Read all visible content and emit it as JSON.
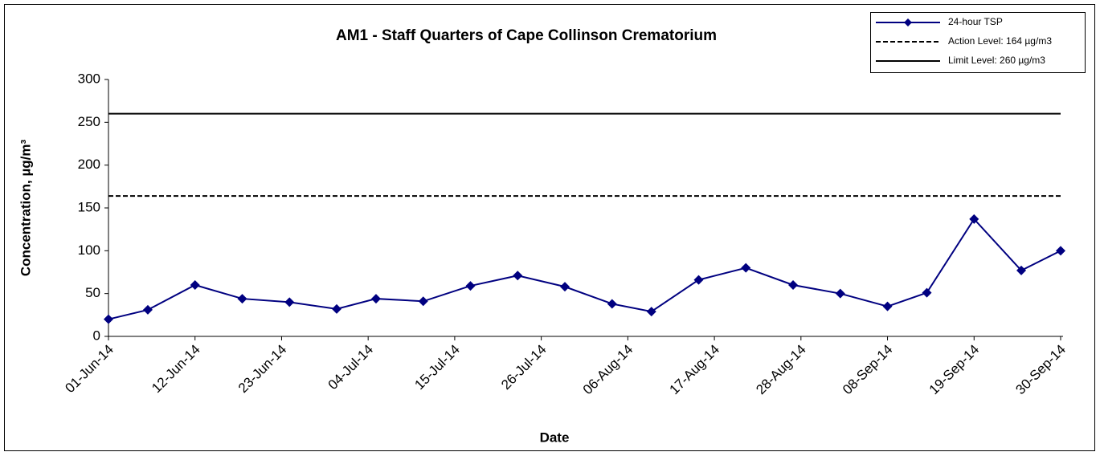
{
  "chart_data": {
    "type": "line",
    "title": "AM1 - Staff Quarters of Cape Collinson Crematorium",
    "x_label": "Date",
    "y_label": "Concentration, µg/m³",
    "x": [
      "2014-06-01",
      "2014-06-06",
      "2014-06-12",
      "2014-06-18",
      "2014-06-24",
      "2014-06-30",
      "2014-07-05",
      "2014-07-11",
      "2014-07-17",
      "2014-07-23",
      "2014-07-29",
      "2014-08-04",
      "2014-08-09",
      "2014-08-15",
      "2014-08-21",
      "2014-08-27",
      "2014-09-02",
      "2014-09-08",
      "2014-09-13",
      "2014-09-19",
      "2014-09-25",
      "2014-09-30"
    ],
    "series": [
      {
        "name": "24-hour TSP",
        "color": "#000080",
        "values": [
          20,
          31,
          60,
          44,
          40,
          32,
          44,
          41,
          59,
          71,
          58,
          38,
          29,
          66,
          80,
          60,
          50,
          35,
          51,
          137,
          77,
          100
        ]
      }
    ],
    "reference_lines": [
      {
        "name": "Action Level: 164 µg/m3",
        "value": 164,
        "style": "dashed",
        "color": "#000000"
      },
      {
        "name": "Limit Level: 260 µg/m3",
        "value": 260,
        "style": "solid",
        "color": "#000000"
      }
    ],
    "xlim": [
      "2014-06-01",
      "2014-09-30"
    ],
    "xticks": [
      {
        "value": "2014-06-01",
        "label": "01-Jun-14"
      },
      {
        "value": "2014-06-12",
        "label": "12-Jun-14"
      },
      {
        "value": "2014-06-23",
        "label": "23-Jun-14"
      },
      {
        "value": "2014-07-04",
        "label": "04-Jul-14"
      },
      {
        "value": "2014-07-15",
        "label": "15-Jul-14"
      },
      {
        "value": "2014-07-26",
        "label": "26-Jul-14"
      },
      {
        "value": "2014-08-06",
        "label": "06-Aug-14"
      },
      {
        "value": "2014-08-17",
        "label": "17-Aug-14"
      },
      {
        "value": "2014-08-28",
        "label": "28-Aug-14"
      },
      {
        "value": "2014-09-08",
        "label": "08-Sep-14"
      },
      {
        "value": "2014-09-19",
        "label": "19-Sep-14"
      },
      {
        "value": "2014-09-30",
        "label": "30-Sep-14"
      }
    ],
    "ylim": [
      0,
      300
    ],
    "yticks": [
      0,
      50,
      100,
      150,
      200,
      250,
      300
    ],
    "grid": false,
    "legend": "upper right"
  }
}
